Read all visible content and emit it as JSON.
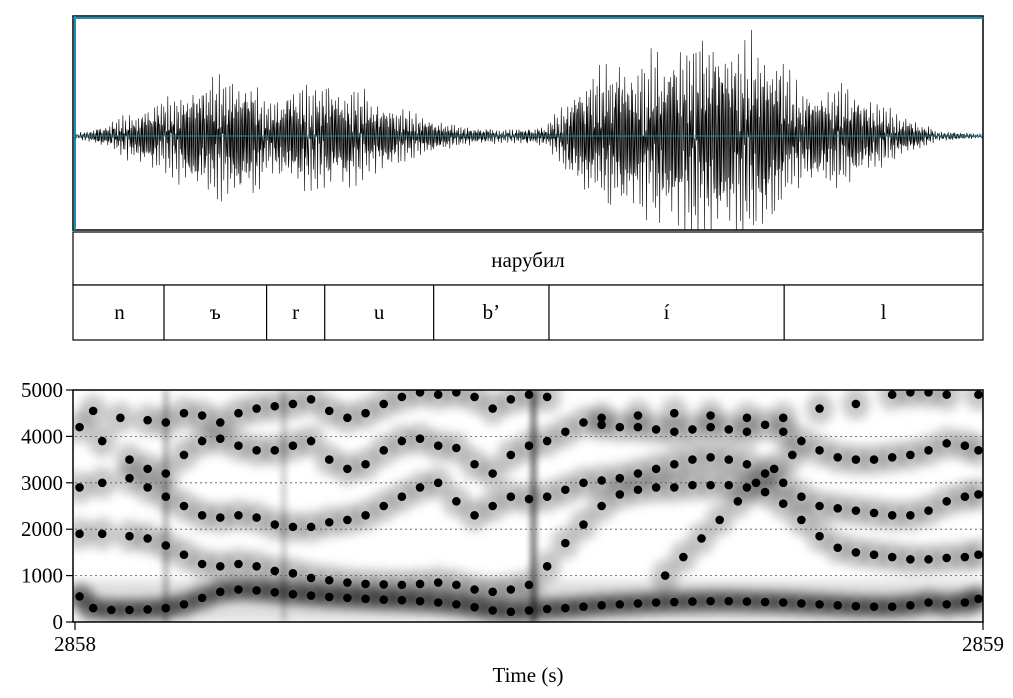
{
  "word_tier": {
    "label": "нарубил"
  },
  "segment_tier": {
    "segments": [
      {
        "label": "n",
        "start": 2858.0,
        "end": 2858.098
      },
      {
        "label": "ъ",
        "start": 2858.098,
        "end": 2858.211
      },
      {
        "label": "r",
        "start": 2858.211,
        "end": 2858.275
      },
      {
        "label": "u",
        "start": 2858.275,
        "end": 2858.395
      },
      {
        "label": "b’",
        "start": 2858.395,
        "end": 2858.522
      },
      {
        "label": "í",
        "start": 2858.522,
        "end": 2858.781
      },
      {
        "label": "l",
        "start": 2858.781,
        "end": 2859.0
      }
    ]
  },
  "chart_data": {
    "type": "scatter",
    "description_type": "spectrogram with formant tracks",
    "xlabel": "Time (s)",
    "x_start_label": "2858",
    "x_end_label": "2859",
    "xlim": [
      2858,
      2859
    ],
    "ylim": [
      0,
      5000
    ],
    "yticks": [
      0,
      1000,
      2000,
      3000,
      4000,
      5000
    ],
    "grid": true,
    "series": [
      {
        "points": [
          [
            2858.005,
            550
          ],
          [
            2858.02,
            300
          ],
          [
            2858.04,
            260
          ],
          [
            2858.06,
            260
          ],
          [
            2858.08,
            270
          ],
          [
            2858.1,
            300
          ],
          [
            2858.12,
            380
          ],
          [
            2858.14,
            520
          ],
          [
            2858.16,
            650
          ],
          [
            2858.18,
            700
          ],
          [
            2858.2,
            680
          ],
          [
            2858.22,
            640
          ],
          [
            2858.24,
            600
          ],
          [
            2858.26,
            570
          ],
          [
            2858.28,
            540
          ],
          [
            2858.3,
            520
          ],
          [
            2858.32,
            500
          ],
          [
            2858.34,
            480
          ],
          [
            2858.36,
            470
          ],
          [
            2858.38,
            450
          ],
          [
            2858.4,
            420
          ],
          [
            2858.42,
            380
          ],
          [
            2858.44,
            320
          ],
          [
            2858.46,
            250
          ],
          [
            2858.48,
            220
          ],
          [
            2858.5,
            250
          ],
          [
            2858.52,
            280
          ],
          [
            2858.54,
            300
          ],
          [
            2858.56,
            330
          ],
          [
            2858.58,
            360
          ],
          [
            2858.6,
            380
          ],
          [
            2858.62,
            400
          ],
          [
            2858.64,
            420
          ],
          [
            2858.66,
            430
          ],
          [
            2858.68,
            440
          ],
          [
            2858.7,
            450
          ],
          [
            2858.72,
            450
          ],
          [
            2858.74,
            440
          ],
          [
            2858.76,
            430
          ],
          [
            2858.78,
            420
          ],
          [
            2858.8,
            400
          ],
          [
            2858.82,
            380
          ],
          [
            2858.84,
            360
          ],
          [
            2858.86,
            340
          ],
          [
            2858.88,
            330
          ],
          [
            2858.9,
            330
          ],
          [
            2858.92,
            360
          ],
          [
            2858.94,
            420
          ],
          [
            2858.96,
            380
          ],
          [
            2858.98,
            420
          ],
          [
            2858.995,
            500
          ]
        ]
      },
      {
        "points": [
          [
            2858.005,
            1900
          ],
          [
            2858.03,
            1900
          ],
          [
            2858.06,
            1850
          ],
          [
            2858.08,
            1800
          ],
          [
            2858.1,
            1650
          ],
          [
            2858.12,
            1450
          ],
          [
            2858.14,
            1250
          ],
          [
            2858.16,
            1200
          ],
          [
            2858.18,
            1250
          ],
          [
            2858.2,
            1200
          ],
          [
            2858.22,
            1100
          ],
          [
            2858.24,
            1050
          ],
          [
            2858.26,
            950
          ],
          [
            2858.28,
            900
          ],
          [
            2858.3,
            850
          ],
          [
            2858.32,
            820
          ],
          [
            2858.34,
            810
          ],
          [
            2858.36,
            800
          ],
          [
            2858.38,
            820
          ],
          [
            2858.4,
            850
          ],
          [
            2858.42,
            800
          ],
          [
            2858.44,
            700
          ],
          [
            2858.46,
            650
          ],
          [
            2858.48,
            700
          ],
          [
            2858.5,
            800
          ],
          [
            2858.52,
            1200
          ],
          [
            2858.54,
            1700
          ],
          [
            2858.56,
            2100
          ],
          [
            2858.58,
            2500
          ],
          [
            2858.6,
            2750
          ],
          [
            2858.62,
            2850
          ],
          [
            2858.64,
            2900
          ],
          [
            2858.66,
            2900
          ],
          [
            2858.68,
            2950
          ],
          [
            2858.7,
            2950
          ],
          [
            2858.72,
            2950
          ],
          [
            2858.74,
            2900
          ],
          [
            2858.76,
            2800
          ],
          [
            2858.78,
            2550
          ],
          [
            2858.8,
            2200
          ],
          [
            2858.82,
            1850
          ],
          [
            2858.84,
            1600
          ],
          [
            2858.86,
            1500
          ],
          [
            2858.88,
            1450
          ],
          [
            2858.9,
            1400
          ],
          [
            2858.92,
            1350
          ],
          [
            2858.94,
            1350
          ],
          [
            2858.96,
            1380
          ],
          [
            2858.98,
            1400
          ],
          [
            2858.995,
            1450
          ]
        ]
      },
      {
        "points": [
          [
            2858.005,
            2900
          ],
          [
            2858.03,
            3000
          ],
          [
            2858.06,
            3100
          ],
          [
            2858.08,
            2900
          ],
          [
            2858.1,
            2700
          ],
          [
            2858.12,
            2500
          ],
          [
            2858.14,
            2300
          ],
          [
            2858.16,
            2250
          ],
          [
            2858.18,
            2300
          ],
          [
            2858.2,
            2250
          ],
          [
            2858.22,
            2100
          ],
          [
            2858.24,
            2050
          ],
          [
            2858.26,
            2050
          ],
          [
            2858.28,
            2150
          ],
          [
            2858.3,
            2200
          ],
          [
            2858.32,
            2300
          ],
          [
            2858.34,
            2500
          ],
          [
            2858.36,
            2700
          ],
          [
            2858.38,
            2900
          ],
          [
            2858.4,
            3000
          ],
          [
            2858.42,
            2600
          ],
          [
            2858.44,
            2300
          ],
          [
            2858.46,
            2500
          ],
          [
            2858.48,
            2700
          ],
          [
            2858.5,
            2650
          ],
          [
            2858.52,
            2700
          ],
          [
            2858.54,
            2850
          ],
          [
            2858.56,
            3000
          ],
          [
            2858.58,
            3050
          ],
          [
            2858.6,
            3100
          ],
          [
            2858.62,
            3200
          ],
          [
            2858.64,
            3300
          ],
          [
            2858.66,
            3400
          ],
          [
            2858.68,
            3500
          ],
          [
            2858.7,
            3550
          ],
          [
            2858.72,
            3500
          ],
          [
            2858.74,
            3400
          ],
          [
            2858.76,
            3200
          ],
          [
            2858.78,
            3000
          ],
          [
            2858.8,
            2700
          ],
          [
            2858.82,
            2500
          ],
          [
            2858.84,
            2450
          ],
          [
            2858.86,
            2400
          ],
          [
            2858.88,
            2350
          ],
          [
            2858.9,
            2300
          ],
          [
            2858.92,
            2300
          ],
          [
            2858.94,
            2400
          ],
          [
            2858.96,
            2600
          ],
          [
            2858.98,
            2700
          ],
          [
            2858.995,
            2750
          ]
        ]
      },
      {
        "points": [
          [
            2858.005,
            4200
          ],
          [
            2858.03,
            3900
          ],
          [
            2858.06,
            3500
          ],
          [
            2858.08,
            3300
          ],
          [
            2858.1,
            3200
          ],
          [
            2858.12,
            3600
          ],
          [
            2858.14,
            3900
          ],
          [
            2858.16,
            3950
          ],
          [
            2858.18,
            3800
          ],
          [
            2858.2,
            3700
          ],
          [
            2858.22,
            3700
          ],
          [
            2858.24,
            3800
          ],
          [
            2858.26,
            3900
          ],
          [
            2858.28,
            3500
          ],
          [
            2858.3,
            3300
          ],
          [
            2858.32,
            3400
          ],
          [
            2858.34,
            3700
          ],
          [
            2858.36,
            3900
          ],
          [
            2858.38,
            3950
          ],
          [
            2858.4,
            3800
          ],
          [
            2858.42,
            3750
          ],
          [
            2858.44,
            3400
          ],
          [
            2858.46,
            3200
          ],
          [
            2858.48,
            3600
          ],
          [
            2858.5,
            3800
          ],
          [
            2858.52,
            3900
          ],
          [
            2858.54,
            4100
          ],
          [
            2858.56,
            4300
          ],
          [
            2858.58,
            4250
          ],
          [
            2858.6,
            4200
          ],
          [
            2858.62,
            4200
          ],
          [
            2858.64,
            4150
          ],
          [
            2858.66,
            4100
          ],
          [
            2858.68,
            4150
          ],
          [
            2858.7,
            4200
          ],
          [
            2858.72,
            4150
          ],
          [
            2858.74,
            4100
          ],
          [
            2858.76,
            4250
          ],
          [
            2858.78,
            4100
          ],
          [
            2858.8,
            3900
          ],
          [
            2858.82,
            3700
          ],
          [
            2858.84,
            3550
          ],
          [
            2858.86,
            3500
          ],
          [
            2858.88,
            3500
          ],
          [
            2858.9,
            3550
          ],
          [
            2858.92,
            3600
          ],
          [
            2858.94,
            3700
          ],
          [
            2858.96,
            3850
          ],
          [
            2858.98,
            3800
          ],
          [
            2858.995,
            3700
          ]
        ]
      },
      {
        "points": [
          [
            2858.02,
            4550
          ],
          [
            2858.05,
            4400
          ],
          [
            2858.08,
            4350
          ],
          [
            2858.1,
            4300
          ],
          [
            2858.12,
            4500
          ],
          [
            2858.14,
            4450
          ],
          [
            2858.16,
            4300
          ],
          [
            2858.18,
            4500
          ],
          [
            2858.2,
            4600
          ],
          [
            2858.22,
            4650
          ],
          [
            2858.24,
            4700
          ],
          [
            2858.26,
            4800
          ],
          [
            2858.28,
            4550
          ],
          [
            2858.3,
            4400
          ],
          [
            2858.32,
            4500
          ],
          [
            2858.34,
            4700
          ],
          [
            2858.36,
            4850
          ],
          [
            2858.38,
            4950
          ],
          [
            2858.4,
            4900
          ],
          [
            2858.42,
            4950
          ],
          [
            2858.44,
            4850
          ],
          [
            2858.46,
            4600
          ],
          [
            2858.48,
            4800
          ],
          [
            2858.5,
            4900
          ],
          [
            2858.52,
            4850
          ],
          [
            2858.58,
            4400
          ],
          [
            2858.62,
            4450
          ],
          [
            2858.66,
            4500
          ],
          [
            2858.7,
            4450
          ],
          [
            2858.74,
            4400
          ],
          [
            2858.78,
            4400
          ],
          [
            2858.82,
            4600
          ],
          [
            2858.86,
            4700
          ],
          [
            2858.9,
            4900
          ],
          [
            2858.92,
            4950
          ],
          [
            2858.94,
            4950
          ],
          [
            2858.96,
            4900
          ],
          [
            2858.995,
            4900
          ]
        ]
      },
      {
        "points": [
          [
            2858.65,
            1000
          ],
          [
            2858.67,
            1400
          ],
          [
            2858.69,
            1800
          ],
          [
            2858.71,
            2200
          ],
          [
            2858.73,
            2600
          ],
          [
            2858.75,
            3000
          ],
          [
            2858.77,
            3300
          ],
          [
            2858.79,
            3600
          ]
        ]
      }
    ]
  }
}
